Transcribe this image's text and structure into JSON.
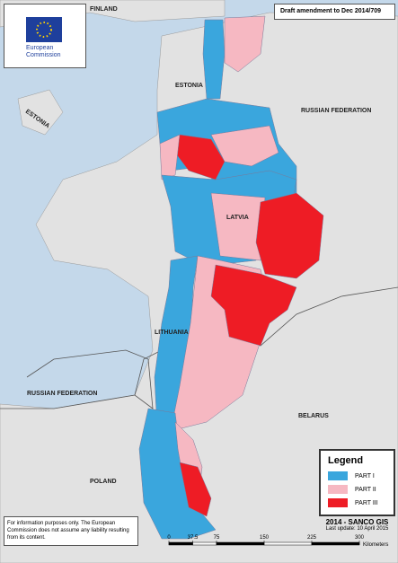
{
  "header": {
    "logo_text": "European Commission",
    "title": "Draft amendment to Dec 2014/709"
  },
  "labels": [
    "FINLAND",
    "ESTONIA",
    "ESTONIA",
    "RUSSIAN FEDERATION",
    "LATVIA",
    "LITHUANIA",
    "RUSSIAN FEDERATION",
    "BELARUS",
    "POLAND"
  ],
  "legend": {
    "title": "Legend",
    "items": [
      {
        "label": "PART I",
        "color": "#3aa6dd"
      },
      {
        "label": "PART II",
        "color": "#f6b8c2"
      },
      {
        "label": "PART III",
        "color": "#ee1c25"
      }
    ]
  },
  "footer": {
    "credit": "2014 - SANCO GIS",
    "update": "Last update: 10 April 2015",
    "disclaimer": "For information purposes only. The European Commission does not assume any liability resulting from its content."
  },
  "scale": {
    "ticks": [
      0,
      37.5,
      75,
      150,
      225,
      300
    ],
    "unit": "Kilometers"
  }
}
